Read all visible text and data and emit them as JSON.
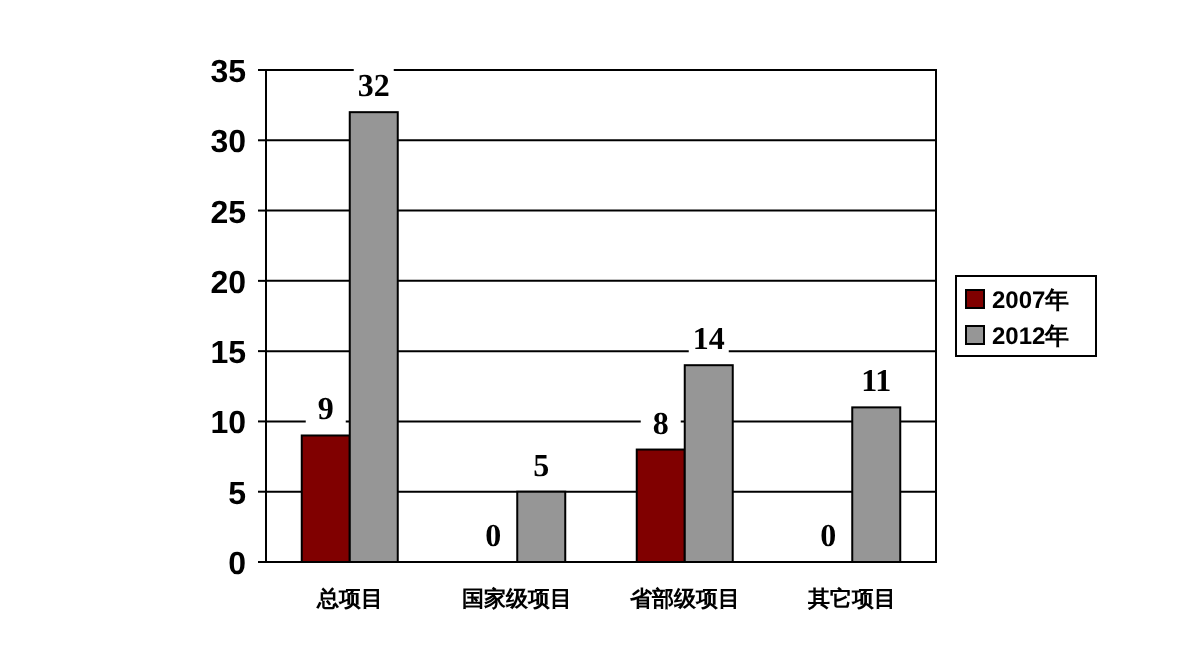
{
  "chart_data": {
    "type": "bar",
    "categories": [
      "总项目",
      "国家级项目",
      "省部级项目",
      "其它项目"
    ],
    "series": [
      {
        "name": "2007年",
        "color": "#800000",
        "values": [
          9,
          0,
          8,
          0
        ]
      },
      {
        "name": "2012年",
        "color": "#969696",
        "values": [
          32,
          5,
          14,
          11
        ]
      }
    ],
    "ylim": [
      0,
      35
    ],
    "yticks": [
      0,
      5,
      10,
      15,
      20,
      25,
      30,
      35
    ],
    "grid": "y",
    "legend": "right",
    "data_labels": true
  }
}
